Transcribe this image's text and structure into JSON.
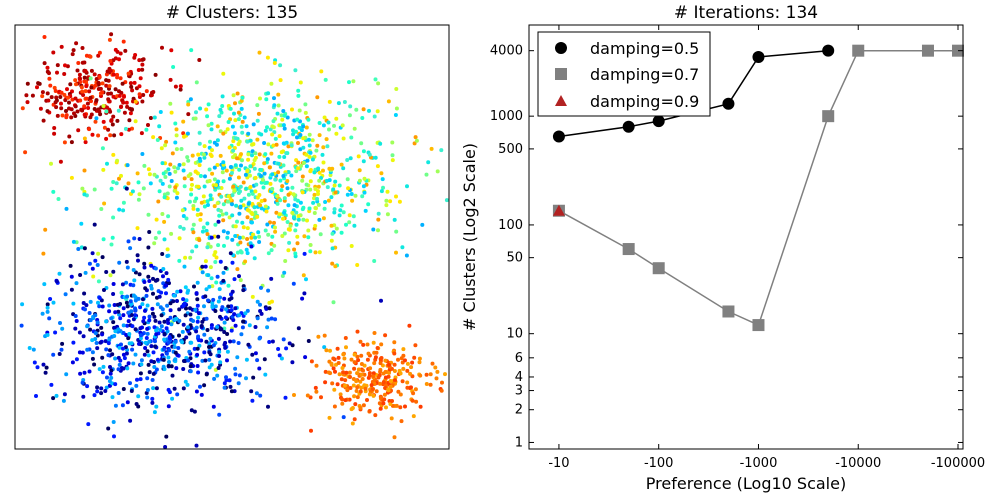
{
  "chart_data": [
    {
      "type": "scatter",
      "title": "# Clusters: 135",
      "xlabel": "",
      "ylabel": "",
      "ticks": "none",
      "point_colormap": "jet",
      "groups": [
        {
          "center": [
            -48,
            72
          ],
          "spread": 9,
          "count": 300,
          "colors": [
            "#b00000",
            "#cc0000",
            "#e00000",
            "#ff2a00",
            "#8b0000",
            "#a50000",
            "#ff4000"
          ]
        },
        {
          "center": [
            -3,
            34
          ],
          "spread": 20,
          "count": 1000,
          "colors": [
            "#00d4ff",
            "#10e8e0",
            "#40ffb8",
            "#70ff88",
            "#a0ff58",
            "#ccff30",
            "#ffe800",
            "#ffbb00",
            "#ff9a00",
            "#3cf0d0",
            "#00b0ff",
            "#20ffc8",
            "#ecf70a"
          ]
        },
        {
          "center": [
            -30,
            -30
          ],
          "spread": 16,
          "count": 800,
          "colors": [
            "#000080",
            "#0000b8",
            "#0000e0",
            "#0018ff",
            "#0048ff",
            "#0078ff",
            "#00a0ff",
            "#00c0ff",
            "#000060"
          ]
        },
        {
          "center": [
            30,
            -50
          ],
          "spread": 8,
          "count": 300,
          "colors": [
            "#ff6a00",
            "#ff7f00",
            "#ff9400",
            "#ff5400",
            "#ff3c00",
            "#ffa600",
            "#ff4a00"
          ]
        }
      ]
    },
    {
      "type": "line",
      "title": "# Iterations: 134",
      "xlabel": "Preference (Log10 Scale)",
      "ylabel": "# Clusters (Log2 Scale)",
      "xscale": "log10 (negative preference)",
      "yscale": "log2",
      "xticks": [
        "-10",
        "-100",
        "-1000",
        "-10000",
        "-100000"
      ],
      "yticks": [
        "1",
        "2",
        "3",
        "4",
        "6",
        "10",
        "50",
        "100",
        "500",
        "1000",
        "4000"
      ],
      "ytick_values": [
        1,
        2,
        3,
        4,
        6,
        10,
        50,
        100,
        500,
        1000,
        4000
      ],
      "legend_position": "top-left",
      "series": [
        {
          "name": "damping=0.5",
          "marker": "circle",
          "color": "#000000",
          "x": [
            -10,
            -50,
            -100,
            -500,
            -1000,
            -5000
          ],
          "y": [
            650,
            800,
            900,
            1300,
            3500,
            4000
          ]
        },
        {
          "name": "damping=0.7",
          "marker": "square",
          "color": "#808080",
          "x": [
            -10,
            -50,
            -100,
            -500,
            -1000,
            -5000,
            -10000,
            -50000,
            -100000
          ],
          "y": [
            135,
            60,
            40,
            16,
            12,
            1000,
            4000,
            4000,
            4000
          ]
        },
        {
          "name": "damping=0.9",
          "marker": "triangle",
          "color": "#b22222",
          "x": [
            -10
          ],
          "y": [
            135
          ]
        }
      ]
    }
  ]
}
